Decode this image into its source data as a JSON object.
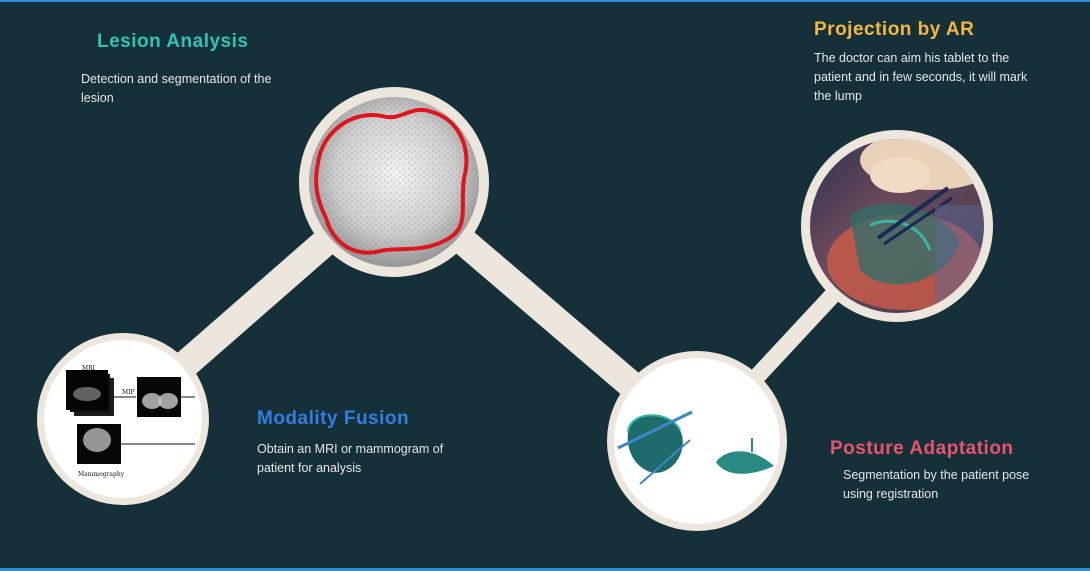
{
  "steps": {
    "lesion": {
      "title": "Lesion Analysis",
      "description": "Detection and segmentation of the lesion",
      "color": "#2ec4b6"
    },
    "ar": {
      "title": "Projection by AR",
      "description": "The doctor can aim his tablet to the patient and in few seconds, it will mark the lump",
      "color": "#f4b73f"
    },
    "fusion": {
      "title": "Modality Fusion",
      "description": "Obtain an MRI or mammogram of patient for analysis",
      "color": "#2f7fe0"
    },
    "posture": {
      "title": "Posture Adaptation",
      "description": "Segmentation by the patient pose using registration",
      "color": "#e8546e"
    }
  },
  "images": {
    "fusion_labels": {
      "mri": "MRI",
      "mip": "MIP",
      "mammography": "Mammography"
    }
  },
  "colors": {
    "background": "#163039",
    "connector": "#ede6dd",
    "segmentation": "#e0141e",
    "frame": "#2d8fd6"
  }
}
